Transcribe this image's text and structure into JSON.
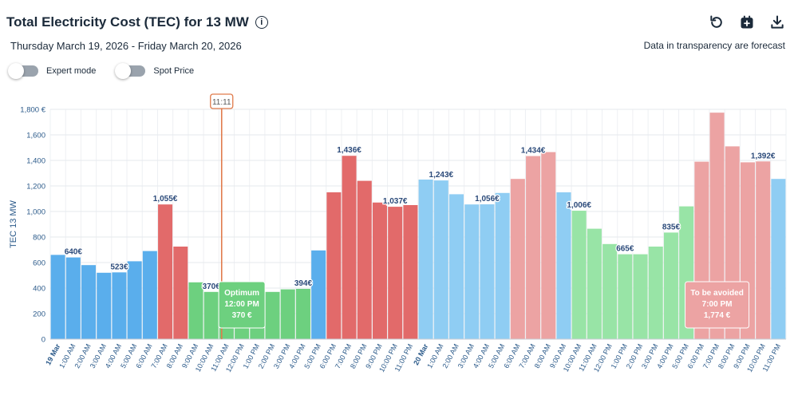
{
  "header": {
    "title": "Total Electricity Cost (TEC) for 13 MW",
    "info_icon": "info-icon",
    "date_range": "Thursday March 19, 2026 - Friday March 20, 2026",
    "forecast_note": "Data in transparency are forecast",
    "tools": [
      "reset-icon",
      "calendar-add-icon",
      "download-icon"
    ]
  },
  "toggles": [
    {
      "label": "Expert mode",
      "on": false
    },
    {
      "label": "Spot Price",
      "on": false
    }
  ],
  "colors": {
    "blue": "#5aaeec",
    "red": "#e26a6a",
    "green": "#6dd07f",
    "blue_forecast": "#8fcdf3",
    "red_forecast": "#eca3a3",
    "green_forecast": "#98e4a6",
    "axis_text": "#2b5a8a",
    "now_line": "#e07a4a"
  },
  "chart_data": {
    "type": "bar",
    "ylabel": "TEC 13 MW",
    "ylim": [
      0,
      1800
    ],
    "yticks": [
      "0",
      "200",
      "400",
      "600",
      "800",
      "1,000",
      "1,200",
      "1,400",
      "1,600",
      "1,800 €"
    ],
    "categories": [
      "19 Mar",
      "1:00 AM",
      "2:00 AM",
      "3:00 AM",
      "4:00 AM",
      "5:00 AM",
      "6:00 AM",
      "7:00 AM",
      "8:00 AM",
      "9:00 AM",
      "10:00 AM",
      "11:00 AM",
      "12:00 PM",
      "1:00 PM",
      "2:00 PM",
      "3:00 PM",
      "4:00 PM",
      "5:00 PM",
      "6:00 PM",
      "7:00 PM",
      "8:00 PM",
      "9:00 PM",
      "10:00 PM",
      "11:00 PM",
      "20 Mar",
      "1:00 AM",
      "2:00 AM",
      "3:00 AM",
      "4:00 AM",
      "5:00 AM",
      "6:00 AM",
      "7:00 AM",
      "8:00 AM",
      "9:00 AM",
      "10:00 AM",
      "11:00 AM",
      "12:00 PM",
      "1:00 PM",
      "2:00 PM",
      "3:00 PM",
      "4:00 PM",
      "5:00 PM",
      "6:00 PM",
      "7:00 PM",
      "8:00 PM",
      "9:00 PM",
      "10:00 PM",
      "11:00 PM"
    ],
    "bold_categories": [
      "19 Mar",
      "20 Mar"
    ],
    "values": [
      660,
      640,
      580,
      520,
      523,
      610,
      690,
      1055,
      725,
      445,
      370,
      370,
      370,
      335,
      370,
      390,
      394,
      695,
      1150,
      1436,
      1240,
      1070,
      1037,
      1050,
      1250,
      1243,
      1135,
      1055,
      1056,
      1145,
      1255,
      1434,
      1465,
      1150,
      1006,
      865,
      745,
      665,
      665,
      725,
      835,
      1040,
      1390,
      1774,
      1510,
      1385,
      1392,
      1255
    ],
    "colors": [
      "blue",
      "blue",
      "blue",
      "blue",
      "blue",
      "blue",
      "blue",
      "red",
      "red",
      "green",
      "green",
      "green",
      "green",
      "green",
      "green",
      "green",
      "green",
      "blue",
      "red",
      "red",
      "red",
      "red",
      "red",
      "red",
      "blue_forecast",
      "blue_forecast",
      "blue_forecast",
      "blue_forecast",
      "blue_forecast",
      "blue_forecast",
      "red_forecast",
      "red_forecast",
      "red_forecast",
      "blue_forecast",
      "green_forecast",
      "green_forecast",
      "green_forecast",
      "green_forecast",
      "green_forecast",
      "green_forecast",
      "green_forecast",
      "green_forecast",
      "red_forecast",
      "red_forecast",
      "red_forecast",
      "red_forecast",
      "red_forecast",
      "blue_forecast"
    ],
    "data_labels": [
      {
        "index": 1,
        "text": "640€"
      },
      {
        "index": 4,
        "text": "523€"
      },
      {
        "index": 7,
        "text": "1,055€"
      },
      {
        "index": 10,
        "text": "370€"
      },
      {
        "index": 16,
        "text": "394€"
      },
      {
        "index": 19,
        "text": "1,436€"
      },
      {
        "index": 22,
        "text": "1,037€"
      },
      {
        "index": 25,
        "text": "1,243€"
      },
      {
        "index": 28,
        "text": "1,056€"
      },
      {
        "index": 31,
        "text": "1,434€"
      },
      {
        "index": 34,
        "text": "1,006€"
      },
      {
        "index": 37,
        "text": "665€"
      },
      {
        "index": 40,
        "text": "835€"
      },
      {
        "index": 46,
        "text": "1,392€"
      }
    ],
    "now_marker": {
      "label": "11:11",
      "position": 11.18
    },
    "tooltips": [
      {
        "index": 12,
        "lines": [
          "Optimum",
          "12:00 PM",
          "370 €"
        ],
        "color": "green"
      },
      {
        "index": 43,
        "lines": [
          "To be avoided",
          "7:00 PM",
          "1,774 €"
        ],
        "color": "red_forecast"
      }
    ]
  }
}
